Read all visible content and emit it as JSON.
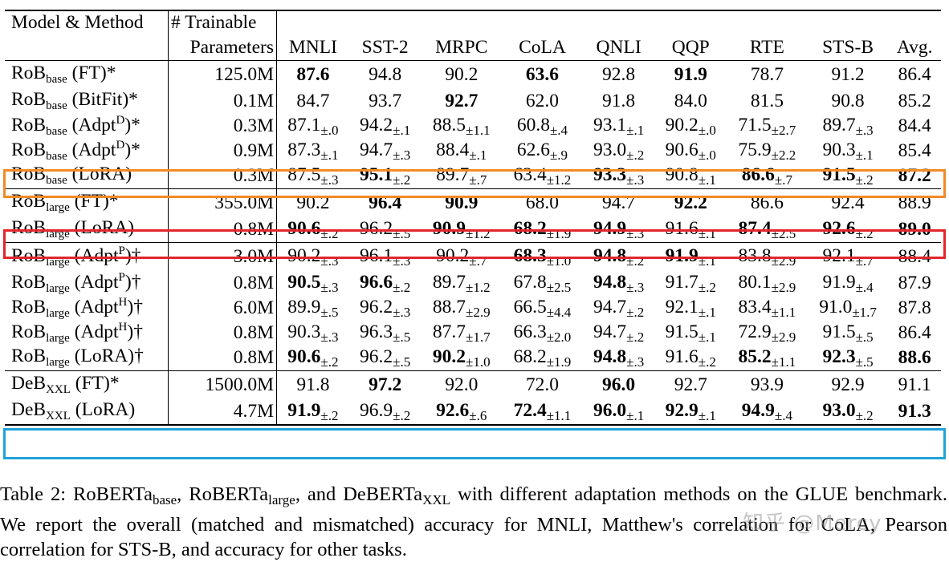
{
  "table": {
    "headers": {
      "model_method": "Model & Method",
      "trainable_line1": "# Trainable",
      "trainable_line2": "Parameters",
      "tasks": [
        "MNLI",
        "SST-2",
        "MRPC",
        "CoLA",
        "QNLI",
        "QQP",
        "RTE",
        "STS-B",
        "Avg."
      ]
    },
    "sections": [
      {
        "rows": [
          {
            "base": "RoB",
            "sub": "base",
            "sup": "",
            "method": " (FT)*",
            "params": "125.0M",
            "cells": [
              {
                "v": "87.6",
                "e": "",
                "b": true
              },
              {
                "v": "94.8",
                "e": "",
                "b": false
              },
              {
                "v": "90.2",
                "e": "",
                "b": false
              },
              {
                "v": "63.6",
                "e": "",
                "b": true
              },
              {
                "v": "92.8",
                "e": "",
                "b": false
              },
              {
                "v": "91.9",
                "e": "",
                "b": true
              },
              {
                "v": "78.7",
                "e": "",
                "b": false
              },
              {
                "v": "91.2",
                "e": "",
                "b": false
              },
              {
                "v": "86.4",
                "e": "",
                "b": false
              }
            ]
          },
          {
            "base": "RoB",
            "sub": "base",
            "sup": "",
            "method": " (BitFit)*",
            "params": "0.1M",
            "cells": [
              {
                "v": "84.7",
                "e": "",
                "b": false
              },
              {
                "v": "93.7",
                "e": "",
                "b": false
              },
              {
                "v": "92.7",
                "e": "",
                "b": true
              },
              {
                "v": "62.0",
                "e": "",
                "b": false
              },
              {
                "v": "91.8",
                "e": "",
                "b": false
              },
              {
                "v": "84.0",
                "e": "",
                "b": false
              },
              {
                "v": "81.5",
                "e": "",
                "b": false
              },
              {
                "v": "90.8",
                "e": "",
                "b": false
              },
              {
                "v": "85.2",
                "e": "",
                "b": false
              }
            ]
          },
          {
            "base": "RoB",
            "sub": "base",
            "sup": "D",
            "method_pre": " (Adpt",
            "method": ")*",
            "params": "0.3M",
            "cells": [
              {
                "v": "87.1",
                "e": "±.0",
                "b": false
              },
              {
                "v": "94.2",
                "e": "±.1",
                "b": false
              },
              {
                "v": "88.5",
                "e": "±1.1",
                "b": false
              },
              {
                "v": "60.8",
                "e": "±.4",
                "b": false
              },
              {
                "v": "93.1",
                "e": "±.1",
                "b": false
              },
              {
                "v": "90.2",
                "e": "±.0",
                "b": false
              },
              {
                "v": "71.5",
                "e": "±2.7",
                "b": false
              },
              {
                "v": "89.7",
                "e": "±.3",
                "b": false
              },
              {
                "v": "84.4",
                "e": "",
                "b": false
              }
            ]
          },
          {
            "base": "RoB",
            "sub": "base",
            "sup": "D",
            "method_pre": " (Adpt",
            "method": ")*",
            "params": "0.9M",
            "cells": [
              {
                "v": "87.3",
                "e": "±.1",
                "b": false
              },
              {
                "v": "94.7",
                "e": "±.3",
                "b": false
              },
              {
                "v": "88.4",
                "e": "±.1",
                "b": false
              },
              {
                "v": "62.6",
                "e": "±.9",
                "b": false
              },
              {
                "v": "93.0",
                "e": "±.2",
                "b": false
              },
              {
                "v": "90.6",
                "e": "±.0",
                "b": false
              },
              {
                "v": "75.9",
                "e": "±2.2",
                "b": false
              },
              {
                "v": "90.3",
                "e": "±.1",
                "b": false
              },
              {
                "v": "85.4",
                "e": "",
                "b": false
              }
            ]
          },
          {
            "base": "RoB",
            "sub": "base",
            "sup": "",
            "method": " (LoRA)",
            "params": "0.3M",
            "highlight": "orange",
            "cells": [
              {
                "v": "87.5",
                "e": "±.3",
                "b": false
              },
              {
                "v": "95.1",
                "e": "±.2",
                "b": true
              },
              {
                "v": "89.7",
                "e": "±.7",
                "b": false
              },
              {
                "v": "63.4",
                "e": "±1.2",
                "b": false
              },
              {
                "v": "93.3",
                "e": "±.3",
                "b": true
              },
              {
                "v": "90.8",
                "e": "±.1",
                "b": false
              },
              {
                "v": "86.6",
                "e": "±.7",
                "b": true
              },
              {
                "v": "91.5",
                "e": "±.2",
                "b": true
              },
              {
                "v": "87.2",
                "e": "",
                "b": true
              }
            ]
          }
        ]
      },
      {
        "rows": [
          {
            "base": "RoB",
            "sub": "large",
            "sup": "",
            "method": " (FT)*",
            "params": "355.0M",
            "cells": [
              {
                "v": "90.2",
                "e": "",
                "b": false
              },
              {
                "v": "96.4",
                "e": "",
                "b": true
              },
              {
                "v": "90.9",
                "e": "",
                "b": true
              },
              {
                "v": "68.0",
                "e": "",
                "b": false
              },
              {
                "v": "94.7",
                "e": "",
                "b": false
              },
              {
                "v": "92.2",
                "e": "",
                "b": true
              },
              {
                "v": "86.6",
                "e": "",
                "b": false
              },
              {
                "v": "92.4",
                "e": "",
                "b": false
              },
              {
                "v": "88.9",
                "e": "",
                "b": false
              }
            ]
          },
          {
            "base": "RoB",
            "sub": "large",
            "sup": "",
            "method": " (LoRA)",
            "params": "0.8M",
            "highlight": "red",
            "cells": [
              {
                "v": "90.6",
                "e": "±.2",
                "b": true
              },
              {
                "v": "96.2",
                "e": "±.5",
                "b": false
              },
              {
                "v": "90.9",
                "e": "±1.2",
                "b": true
              },
              {
                "v": "68.2",
                "e": "±1.9",
                "b": true
              },
              {
                "v": "94.9",
                "e": "±.3",
                "b": true
              },
              {
                "v": "91.6",
                "e": "±.1",
                "b": false
              },
              {
                "v": "87.4",
                "e": "±2.5",
                "b": true
              },
              {
                "v": "92.6",
                "e": "±.2",
                "b": true
              },
              {
                "v": "89.0",
                "e": "",
                "b": true
              }
            ]
          }
        ]
      },
      {
        "rows": [
          {
            "base": "RoB",
            "sub": "large",
            "sup": "P",
            "method_pre": " (Adpt",
            "method": ")†",
            "params": "3.0M",
            "cells": [
              {
                "v": "90.2",
                "e": "±.3",
                "b": false
              },
              {
                "v": "96.1",
                "e": "±.3",
                "b": false
              },
              {
                "v": "90.2",
                "e": "±.7",
                "b": false
              },
              {
                "v": "68.3",
                "e": "±1.0",
                "b": true
              },
              {
                "v": "94.8",
                "e": "±.2",
                "b": true
              },
              {
                "v": "91.9",
                "e": "±.1",
                "b": true
              },
              {
                "v": "83.8",
                "e": "±2.9",
                "b": false
              },
              {
                "v": "92.1",
                "e": "±.7",
                "b": false
              },
              {
                "v": "88.4",
                "e": "",
                "b": false
              }
            ]
          },
          {
            "base": "RoB",
            "sub": "large",
            "sup": "P",
            "method_pre": " (Adpt",
            "method": ")†",
            "params": "0.8M",
            "cells": [
              {
                "v": "90.5",
                "e": "±.3",
                "b": true
              },
              {
                "v": "96.6",
                "e": "±.2",
                "b": true
              },
              {
                "v": "89.7",
                "e": "±1.2",
                "b": false
              },
              {
                "v": "67.8",
                "e": "±2.5",
                "b": false
              },
              {
                "v": "94.8",
                "e": "±.3",
                "b": true
              },
              {
                "v": "91.7",
                "e": "±.2",
                "b": false
              },
              {
                "v": "80.1",
                "e": "±2.9",
                "b": false
              },
              {
                "v": "91.9",
                "e": "±.4",
                "b": false
              },
              {
                "v": "87.9",
                "e": "",
                "b": false
              }
            ]
          },
          {
            "base": "RoB",
            "sub": "large",
            "sup": "H",
            "method_pre": " (Adpt",
            "method": ")†",
            "params": "6.0M",
            "cells": [
              {
                "v": "89.9",
                "e": "±.5",
                "b": false
              },
              {
                "v": "96.2",
                "e": "±.3",
                "b": false
              },
              {
                "v": "88.7",
                "e": "±2.9",
                "b": false
              },
              {
                "v": "66.5",
                "e": "±4.4",
                "b": false
              },
              {
                "v": "94.7",
                "e": "±.2",
                "b": false
              },
              {
                "v": "92.1",
                "e": "±.1",
                "b": false
              },
              {
                "v": "83.4",
                "e": "±1.1",
                "b": false
              },
              {
                "v": "91.0",
                "e": "±1.7",
                "b": false
              },
              {
                "v": "87.8",
                "e": "",
                "b": false
              }
            ]
          },
          {
            "base": "RoB",
            "sub": "large",
            "sup": "H",
            "method_pre": " (Adpt",
            "method": ")†",
            "params": "0.8M",
            "cells": [
              {
                "v": "90.3",
                "e": "±.3",
                "b": false
              },
              {
                "v": "96.3",
                "e": "±.5",
                "b": false
              },
              {
                "v": "87.7",
                "e": "±1.7",
                "b": false
              },
              {
                "v": "66.3",
                "e": "±2.0",
                "b": false
              },
              {
                "v": "94.7",
                "e": "±.2",
                "b": false
              },
              {
                "v": "91.5",
                "e": "±.1",
                "b": false
              },
              {
                "v": "72.9",
                "e": "±2.9",
                "b": false
              },
              {
                "v": "91.5",
                "e": "±.5",
                "b": false
              },
              {
                "v": "86.4",
                "e": "",
                "b": false
              }
            ]
          },
          {
            "base": "RoB",
            "sub": "large",
            "sup": "",
            "method": " (LoRA)†",
            "params": "0.8M",
            "cells": [
              {
                "v": "90.6",
                "e": "±.2",
                "b": true
              },
              {
                "v": "96.2",
                "e": "±.5",
                "b": false
              },
              {
                "v": "90.2",
                "e": "±1.0",
                "b": true
              },
              {
                "v": "68.2",
                "e": "±1.9",
                "b": false
              },
              {
                "v": "94.8",
                "e": "±.3",
                "b": true
              },
              {
                "v": "91.6",
                "e": "±.2",
                "b": false
              },
              {
                "v": "85.2",
                "e": "±1.1",
                "b": true
              },
              {
                "v": "92.3",
                "e": "±.5",
                "b": true
              },
              {
                "v": "88.6",
                "e": "",
                "b": true
              }
            ]
          }
        ]
      },
      {
        "rows": [
          {
            "base": "DeB",
            "sub": "XXL",
            "sup": "",
            "method": " (FT)*",
            "params": "1500.0M",
            "cells": [
              {
                "v": "91.8",
                "e": "",
                "b": false
              },
              {
                "v": "97.2",
                "e": "",
                "b": true
              },
              {
                "v": "92.0",
                "e": "",
                "b": false
              },
              {
                "v": "72.0",
                "e": "",
                "b": false
              },
              {
                "v": "96.0",
                "e": "",
                "b": true
              },
              {
                "v": "92.7",
                "e": "",
                "b": false
              },
              {
                "v": "93.9",
                "e": "",
                "b": false
              },
              {
                "v": "92.9",
                "e": "",
                "b": false
              },
              {
                "v": "91.1",
                "e": "",
                "b": false
              }
            ]
          },
          {
            "base": "DeB",
            "sub": "XXL",
            "sup": "",
            "method": " (LoRA)",
            "params": "4.7M",
            "highlight": "blue",
            "cells": [
              {
                "v": "91.9",
                "e": "±.2",
                "b": true
              },
              {
                "v": "96.9",
                "e": "±.2",
                "b": false
              },
              {
                "v": "92.6",
                "e": "±.6",
                "b": true
              },
              {
                "v": "72.4",
                "e": "±1.1",
                "b": true
              },
              {
                "v": "96.0",
                "e": "±.1",
                "b": true
              },
              {
                "v": "92.9",
                "e": "±.1",
                "b": true
              },
              {
                "v": "94.9",
                "e": "±.4",
                "b": true
              },
              {
                "v": "93.0",
                "e": "±.2",
                "b": true
              },
              {
                "v": "91.3",
                "e": "",
                "b": true
              }
            ]
          }
        ]
      }
    ]
  },
  "caption": {
    "lead": "Table 2: RoBERTa",
    "sub1": "base",
    "mid1": ", RoBERTa",
    "sub2": "large",
    "mid2": ", and DeBERTa",
    "sub3": "XXL",
    "rest": " with different adaptation methods on the GLUE benchmark. We report the overall (matched and mismatched) accuracy for MNLI, Matthew's correlation for CoLA, Pearson correlation for STS-B, and accuracy for other tasks."
  },
  "watermark": "知乎 @Mercy",
  "colors": {
    "orange": "#f28a25",
    "red": "#e3252c",
    "blue": "#20a2d8"
  }
}
